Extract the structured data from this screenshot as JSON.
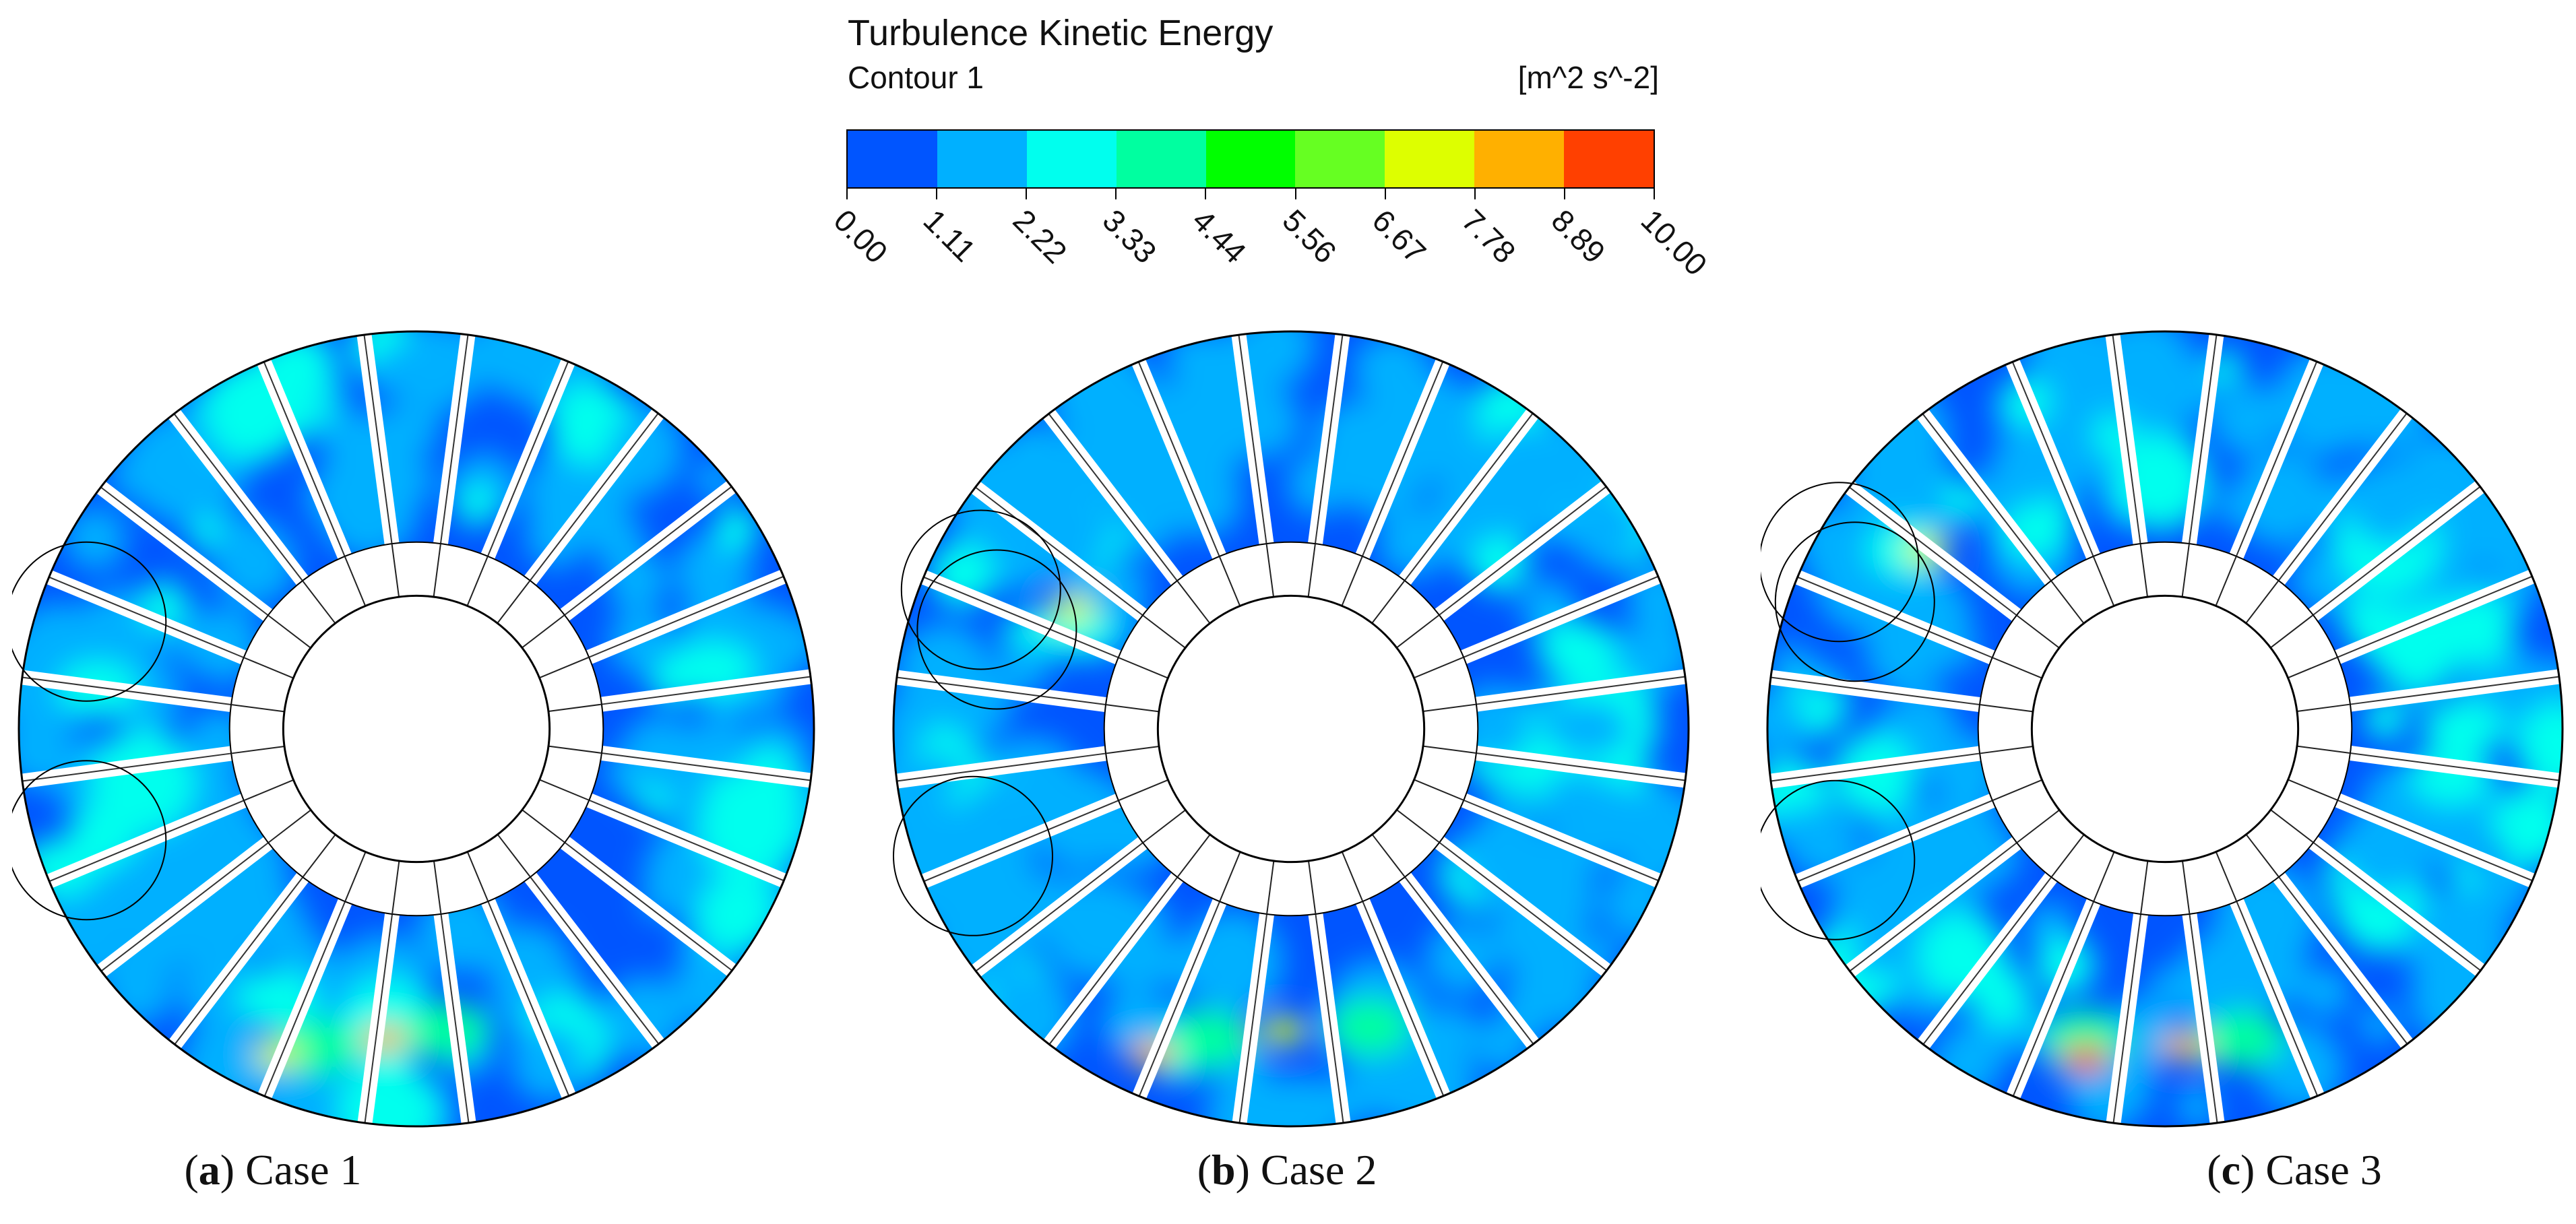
{
  "legend": {
    "title": "Turbulence Kinetic Energy",
    "subtitle": "Contour 1",
    "units": "[m^2 s^-2]",
    "ticks": [
      "0.00",
      "1.11",
      "2.22",
      "3.33",
      "4.44",
      "5.56",
      "6.67",
      "7.78",
      "8.89",
      "10.00"
    ],
    "colors": [
      "#0055ff",
      "#00b0ff",
      "#00ffee",
      "#00ffa0",
      "#00ff00",
      "#66ff22",
      "#ddff00",
      "#ffb000",
      "#ff4000"
    ]
  },
  "panels": [
    {
      "letter": "a",
      "label": ") Case 1"
    },
    {
      "letter": "b",
      "label": ") Case 2"
    },
    {
      "letter": "c",
      "label": ") Case 3"
    }
  ]
}
